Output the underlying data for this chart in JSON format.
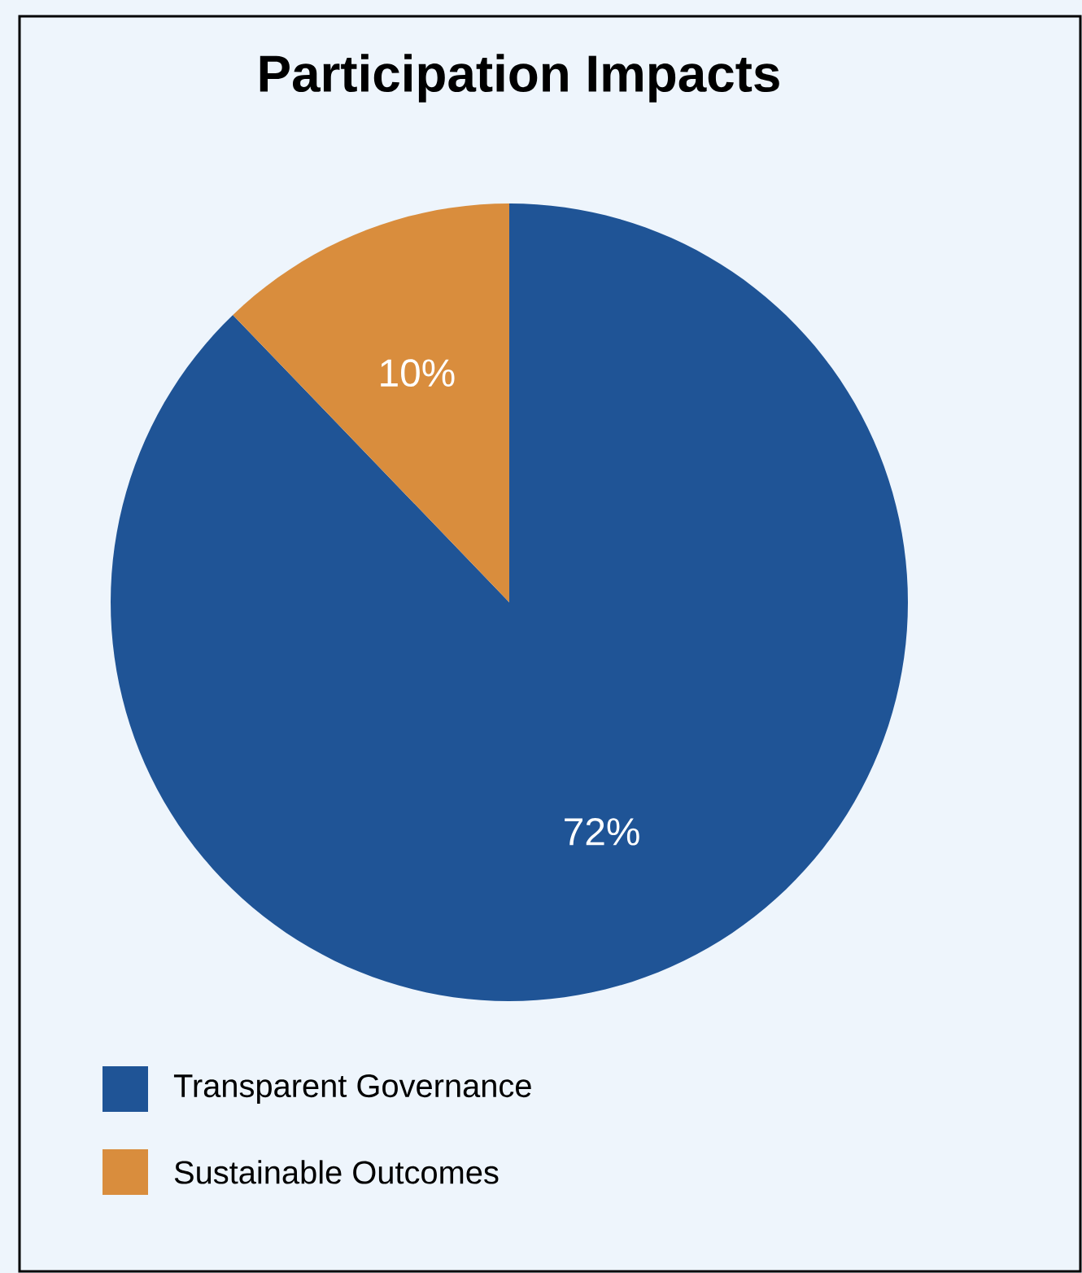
{
  "chart_data": {
    "type": "pie",
    "title": "Participation Impacts",
    "categories": [
      "Transparent Governance",
      "Sustainable Outcomes"
    ],
    "values": [
      72,
      10
    ],
    "colors": [
      "#1f5496",
      "#d98d3d"
    ],
    "value_labels": [
      "72%",
      "10%"
    ],
    "legend": "bottom left"
  }
}
